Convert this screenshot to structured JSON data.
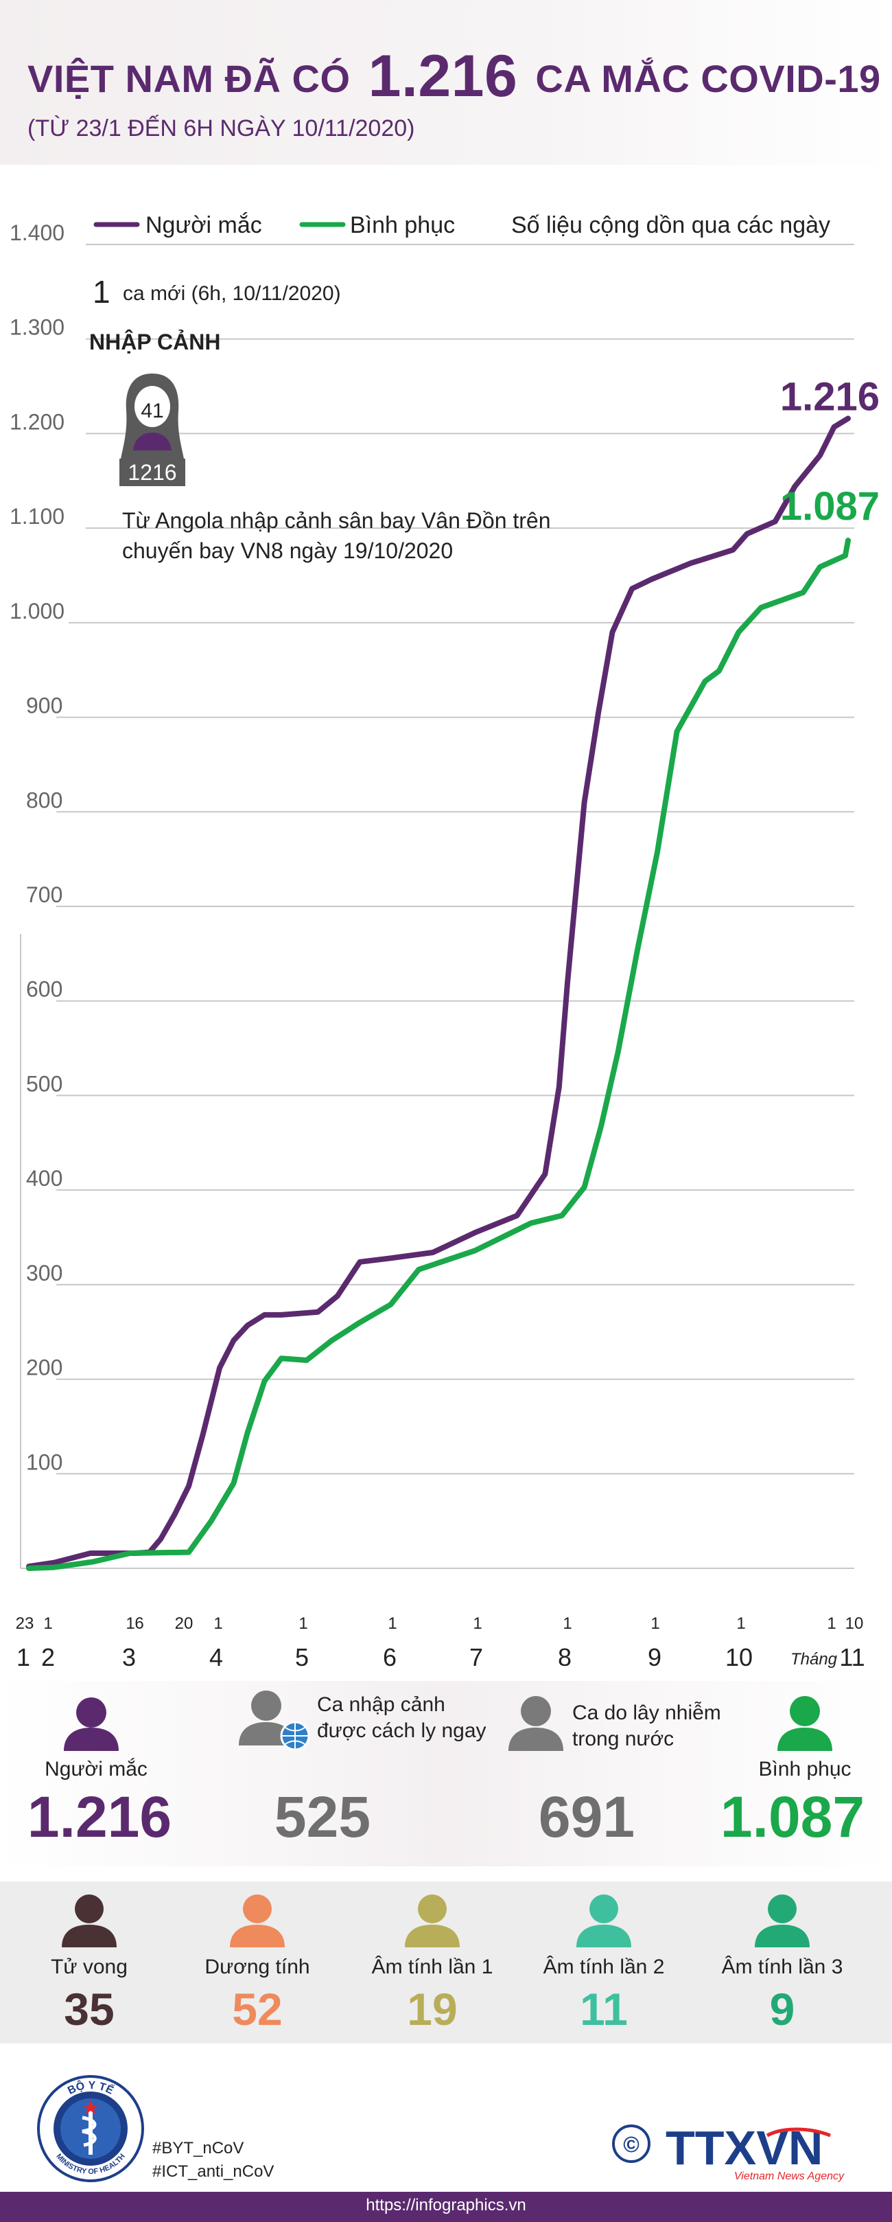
{
  "header": {
    "title_part1": "VIỆT NAM ĐÃ CÓ",
    "title_number": "1.216",
    "title_part2": "CA MẮC COVID-19",
    "subtitle": "(TỪ 23/1 ĐẾN 6H NGÀY 10/11/2020)"
  },
  "colors": {
    "purple": "#5b2a6e",
    "green": "#1aa84a",
    "gray": "#6f6f6f",
    "dark_brown": "#4a3134",
    "orange": "#ef8a5c",
    "olive": "#b8ad58",
    "teal": "#3ec09e",
    "teal_green": "#23a975"
  },
  "chart_data": {
    "type": "line",
    "title": "",
    "xlabel": "",
    "ylabel": "",
    "ylim": [
      0,
      1400
    ],
    "yticks": [
      "100",
      "200",
      "300",
      "400",
      "500",
      "600",
      "700",
      "800",
      "900",
      "1.000",
      "1.100",
      "1.200",
      "1.300",
      "1.400"
    ],
    "legend": {
      "placement": "top",
      "note": "Số liệu cộng dồn qua các ngày"
    },
    "grid": true,
    "x_day_labels": [
      "23",
      "1",
      "1",
      "6",
      "20",
      "1",
      "1",
      "1",
      "1",
      "1",
      "1",
      "1",
      "1",
      "10"
    ],
    "x_month_labels": [
      "1",
      "2",
      "3",
      "4",
      "5",
      "6",
      "7",
      "8",
      "9",
      "10",
      "11"
    ],
    "x_month_caption": "Tháng",
    "series": [
      {
        "name": "Người mắc",
        "color": "#5b2a6e",
        "end_label": "1.216",
        "points": [
          [
            "2020-01-23",
            2
          ],
          [
            "2020-02-01",
            6
          ],
          [
            "2020-02-14",
            16
          ],
          [
            "2020-03-01",
            16
          ],
          [
            "2020-03-06",
            17
          ],
          [
            "2020-03-10",
            31
          ],
          [
            "2020-03-15",
            57
          ],
          [
            "2020-03-20",
            87
          ],
          [
            "2020-03-25",
            141
          ],
          [
            "2020-03-31",
            212
          ],
          [
            "2020-04-05",
            241
          ],
          [
            "2020-04-10",
            257
          ],
          [
            "2020-04-16",
            268
          ],
          [
            "2020-04-22",
            268
          ],
          [
            "2020-05-05",
            271
          ],
          [
            "2020-05-12",
            288
          ],
          [
            "2020-05-20",
            324
          ],
          [
            "2020-05-31",
            328
          ],
          [
            "2020-06-15",
            334
          ],
          [
            "2020-06-30",
            355
          ],
          [
            "2020-07-15",
            373
          ],
          [
            "2020-07-25",
            417
          ],
          [
            "2020-07-30",
            509
          ],
          [
            "2020-08-02",
            620
          ],
          [
            "2020-08-08",
            810
          ],
          [
            "2020-08-13",
            905
          ],
          [
            "2020-08-18",
            990
          ],
          [
            "2020-08-25",
            1036
          ],
          [
            "2020-09-01",
            1046
          ],
          [
            "2020-09-15",
            1063
          ],
          [
            "2020-09-30",
            1077
          ],
          [
            "2020-10-05",
            1094
          ],
          [
            "2020-10-15",
            1107
          ],
          [
            "2020-10-22",
            1144
          ],
          [
            "2020-10-31",
            1177
          ],
          [
            "2020-11-05",
            1207
          ],
          [
            "2020-11-10",
            1216
          ]
        ]
      },
      {
        "name": "Bình phục",
        "color": "#1aa84a",
        "end_label": "1.087",
        "points": [
          [
            "2020-01-23",
            0
          ],
          [
            "2020-02-01",
            1
          ],
          [
            "2020-02-15",
            7
          ],
          [
            "2020-02-28",
            16
          ],
          [
            "2020-03-20",
            17
          ],
          [
            "2020-03-28",
            50
          ],
          [
            "2020-04-05",
            90
          ],
          [
            "2020-04-10",
            144
          ],
          [
            "2020-04-16",
            198
          ],
          [
            "2020-04-22",
            222
          ],
          [
            "2020-05-01",
            220
          ],
          [
            "2020-05-10",
            241
          ],
          [
            "2020-05-20",
            260
          ],
          [
            "2020-05-31",
            279
          ],
          [
            "2020-06-10",
            316
          ],
          [
            "2020-06-30",
            336
          ],
          [
            "2020-07-20",
            365
          ],
          [
            "2020-07-31",
            373
          ],
          [
            "2020-08-08",
            403
          ],
          [
            "2020-08-14",
            468
          ],
          [
            "2020-08-20",
            546
          ],
          [
            "2020-08-27",
            655
          ],
          [
            "2020-09-03",
            757
          ],
          [
            "2020-09-10",
            885
          ],
          [
            "2020-09-20",
            938
          ],
          [
            "2020-09-25",
            949
          ],
          [
            "2020-10-02",
            990
          ],
          [
            "2020-10-10",
            1016
          ],
          [
            "2020-10-25",
            1032
          ],
          [
            "2020-10-31",
            1059
          ],
          [
            "2020-11-09",
            1071
          ],
          [
            "2020-11-10",
            1087
          ]
        ]
      }
    ]
  },
  "annotation": {
    "new_count": "1",
    "new_text": "ca mới (6h, 10/11/2020)",
    "category": "NHẬP CẢNH",
    "patient_number": "41",
    "case_number": "1216",
    "description": "Từ Angola nhập cảnh sân bay Vân Đồn trên chuyến bay VN8 ngày 19/10/2020"
  },
  "totals": {
    "cases_label": "Người mắc",
    "cases_value": "1.216",
    "imported_label": "Ca nhập cảnh được cách ly ngay",
    "imported_value": "525",
    "local_label": "Ca do lây nhiễm trong nước",
    "local_value": "691",
    "recovered_label": "Bình phục",
    "recovered_value": "1.087"
  },
  "details": [
    {
      "label": "Tử vong",
      "value": "35",
      "color": "#4a3134",
      "icon": "person-icon"
    },
    {
      "label": "Dương tính",
      "value": "52",
      "color": "#ef8a5c",
      "icon": "person-icon"
    },
    {
      "label": "Âm tính lần 1",
      "value": "19",
      "color": "#b8ad58",
      "icon": "person-icon"
    },
    {
      "label": "Âm tính lần 2",
      "value": "11",
      "color": "#3ec09e",
      "icon": "person-icon"
    },
    {
      "label": "Âm tính lần 3",
      "value": "9",
      "color": "#23a975",
      "icon": "person-icon"
    }
  ],
  "footer": {
    "logo_top_text": "BỘ Y TẾ",
    "logo_bottom_text": "MINISTRY OF HEALTH",
    "hashtag1": "#BYT_nCoV",
    "hashtag2": "#ICT_anti_nCoV",
    "agency_copyright": "©",
    "agency_name": "TTXVN",
    "agency_sub": "Vietnam News Agency",
    "url": "https://infographics.vn"
  }
}
